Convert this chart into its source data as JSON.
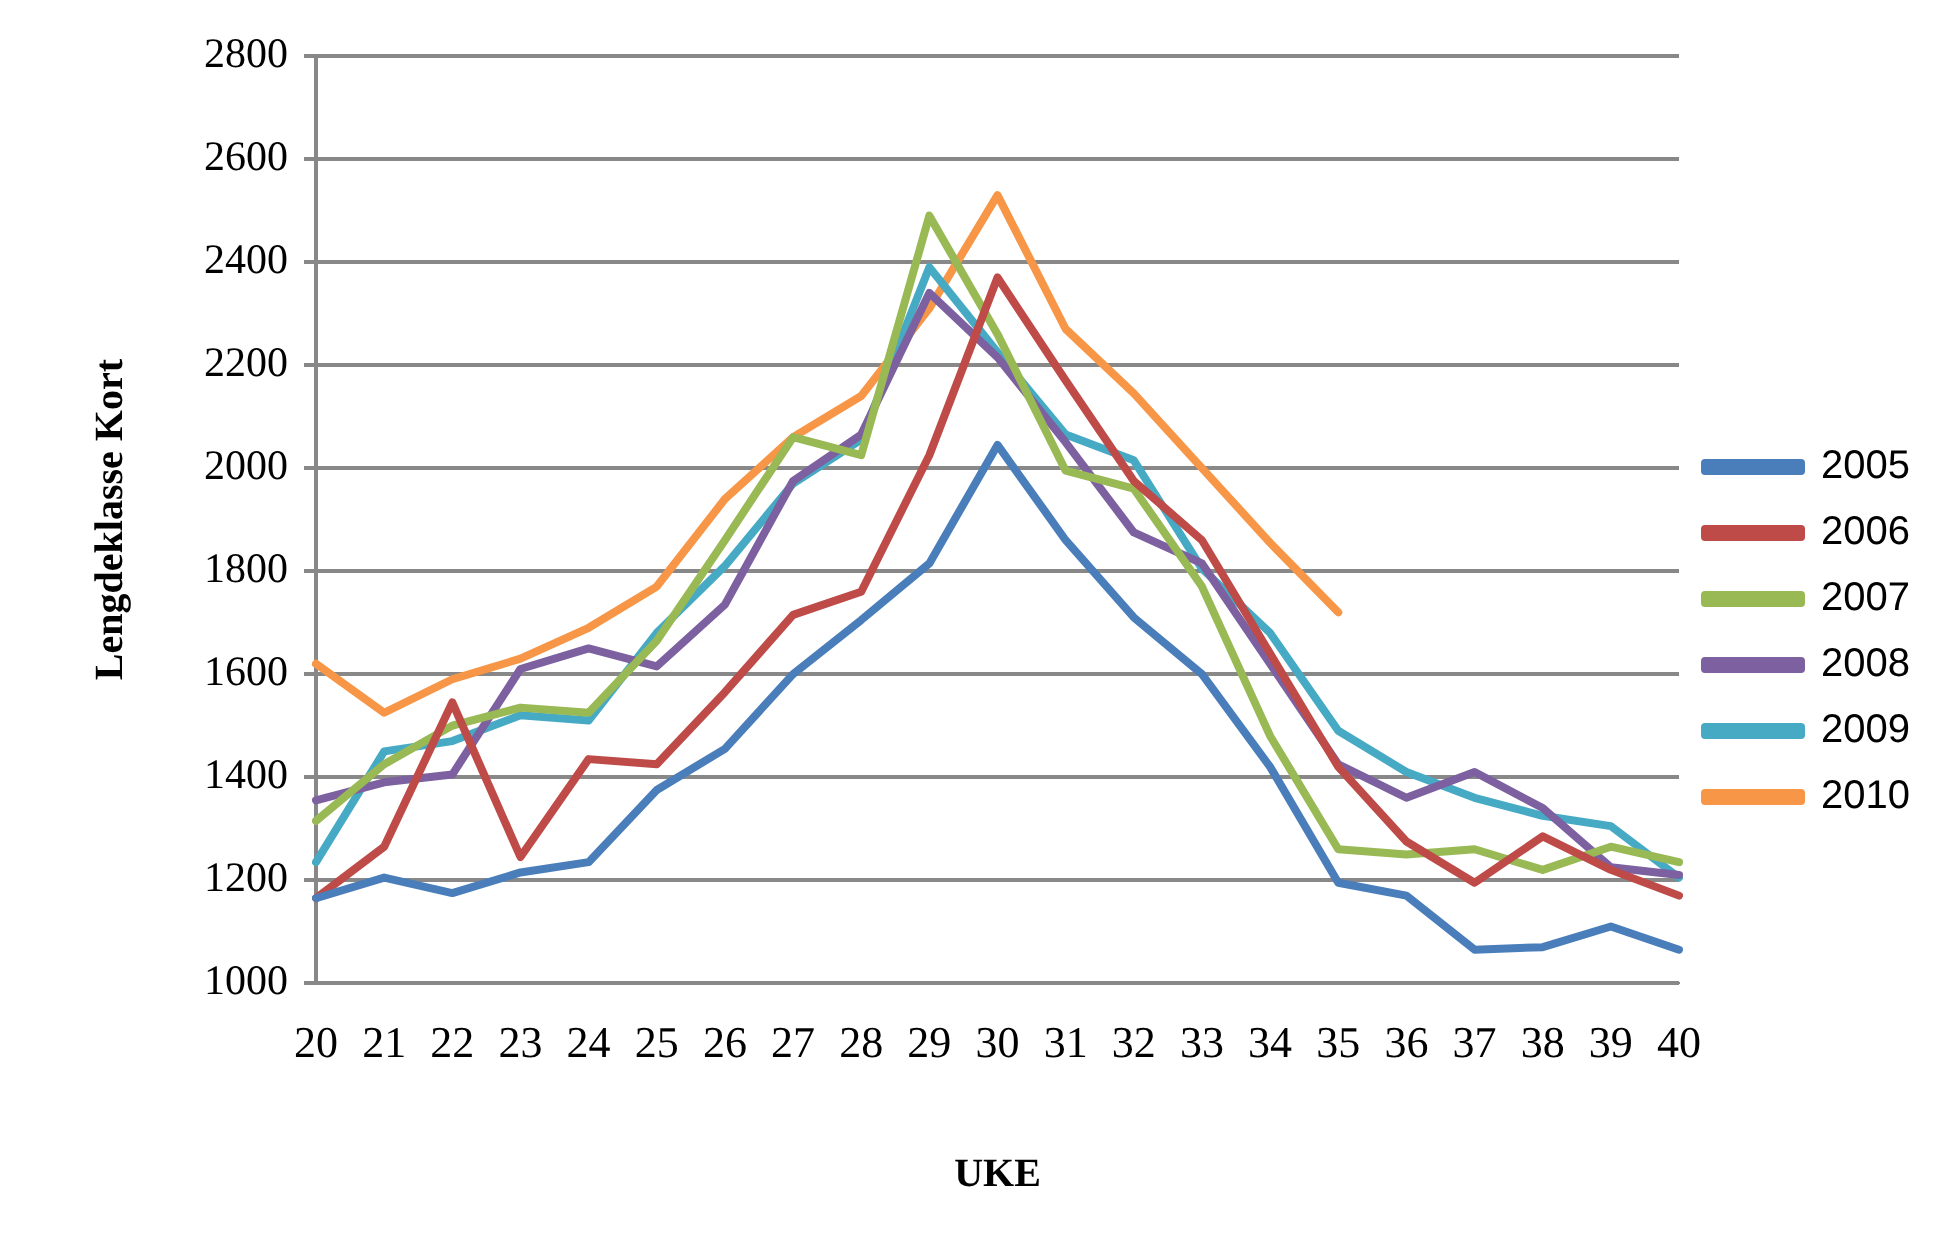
{
  "chart_data": {
    "type": "line",
    "xlabel": "UKE",
    "ylabel": "Lengdeklasse Kort",
    "categories": [
      "20",
      "21",
      "22",
      "23",
      "24",
      "25",
      "26",
      "27",
      "28",
      "29",
      "30",
      "31",
      "32",
      "33",
      "34",
      "35",
      "36",
      "37",
      "38",
      "39",
      "40"
    ],
    "ylim": [
      1000,
      2800
    ],
    "yticks": [
      1000,
      1200,
      1400,
      1600,
      1800,
      2000,
      2200,
      2400,
      2600,
      2800
    ],
    "grid": "y",
    "legend": "right",
    "marker": "none",
    "line_style": "solid",
    "series": [
      {
        "name": "2005",
        "color": "#4a7ebb",
        "values": [
          1165,
          1205,
          1175,
          1215,
          1235,
          1375,
          1455,
          1600,
          1705,
          1815,
          2045,
          1860,
          1710,
          1600,
          1420,
          1195,
          1170,
          1065,
          1070,
          1110,
          1065
        ]
      },
      {
        "name": "2006",
        "color": "#be4b48",
        "values": [
          1165,
          1265,
          1545,
          1245,
          1435,
          1425,
          1565,
          1715,
          1760,
          2025,
          2370,
          2170,
          1975,
          1860,
          1640,
          1420,
          1275,
          1195,
          1285,
          1220,
          1170
        ]
      },
      {
        "name": "2007",
        "color": "#98b954",
        "values": [
          1315,
          1425,
          1500,
          1535,
          1525,
          1665,
          1860,
          2060,
          2025,
          2490,
          2260,
          1995,
          1960,
          1770,
          1480,
          1260,
          1250,
          1260,
          1220,
          1265,
          1235
        ]
      },
      {
        "name": "2008",
        "color": "#7d60a0",
        "values": [
          1355,
          1390,
          1405,
          1610,
          1650,
          1615,
          1735,
          1975,
          2065,
          2340,
          2215,
          2050,
          1875,
          1815,
          1620,
          1425,
          1360,
          1410,
          1340,
          1225,
          1210
        ]
      },
      {
        "name": "2009",
        "color": "#46aac5",
        "values": [
          1235,
          1450,
          1470,
          1520,
          1510,
          1680,
          1810,
          1970,
          2055,
          2390,
          2225,
          2065,
          2015,
          1805,
          1680,
          1490,
          1410,
          1360,
          1325,
          1305,
          1205
        ]
      },
      {
        "name": "2010",
        "color": "#f79646",
        "values": [
          1620,
          1525,
          1590,
          1630,
          1690,
          1770,
          1940,
          2060,
          2140,
          2310,
          2530,
          2270,
          2145,
          2000,
          1855,
          1720,
          null,
          null,
          null,
          null,
          null
        ]
      }
    ]
  }
}
